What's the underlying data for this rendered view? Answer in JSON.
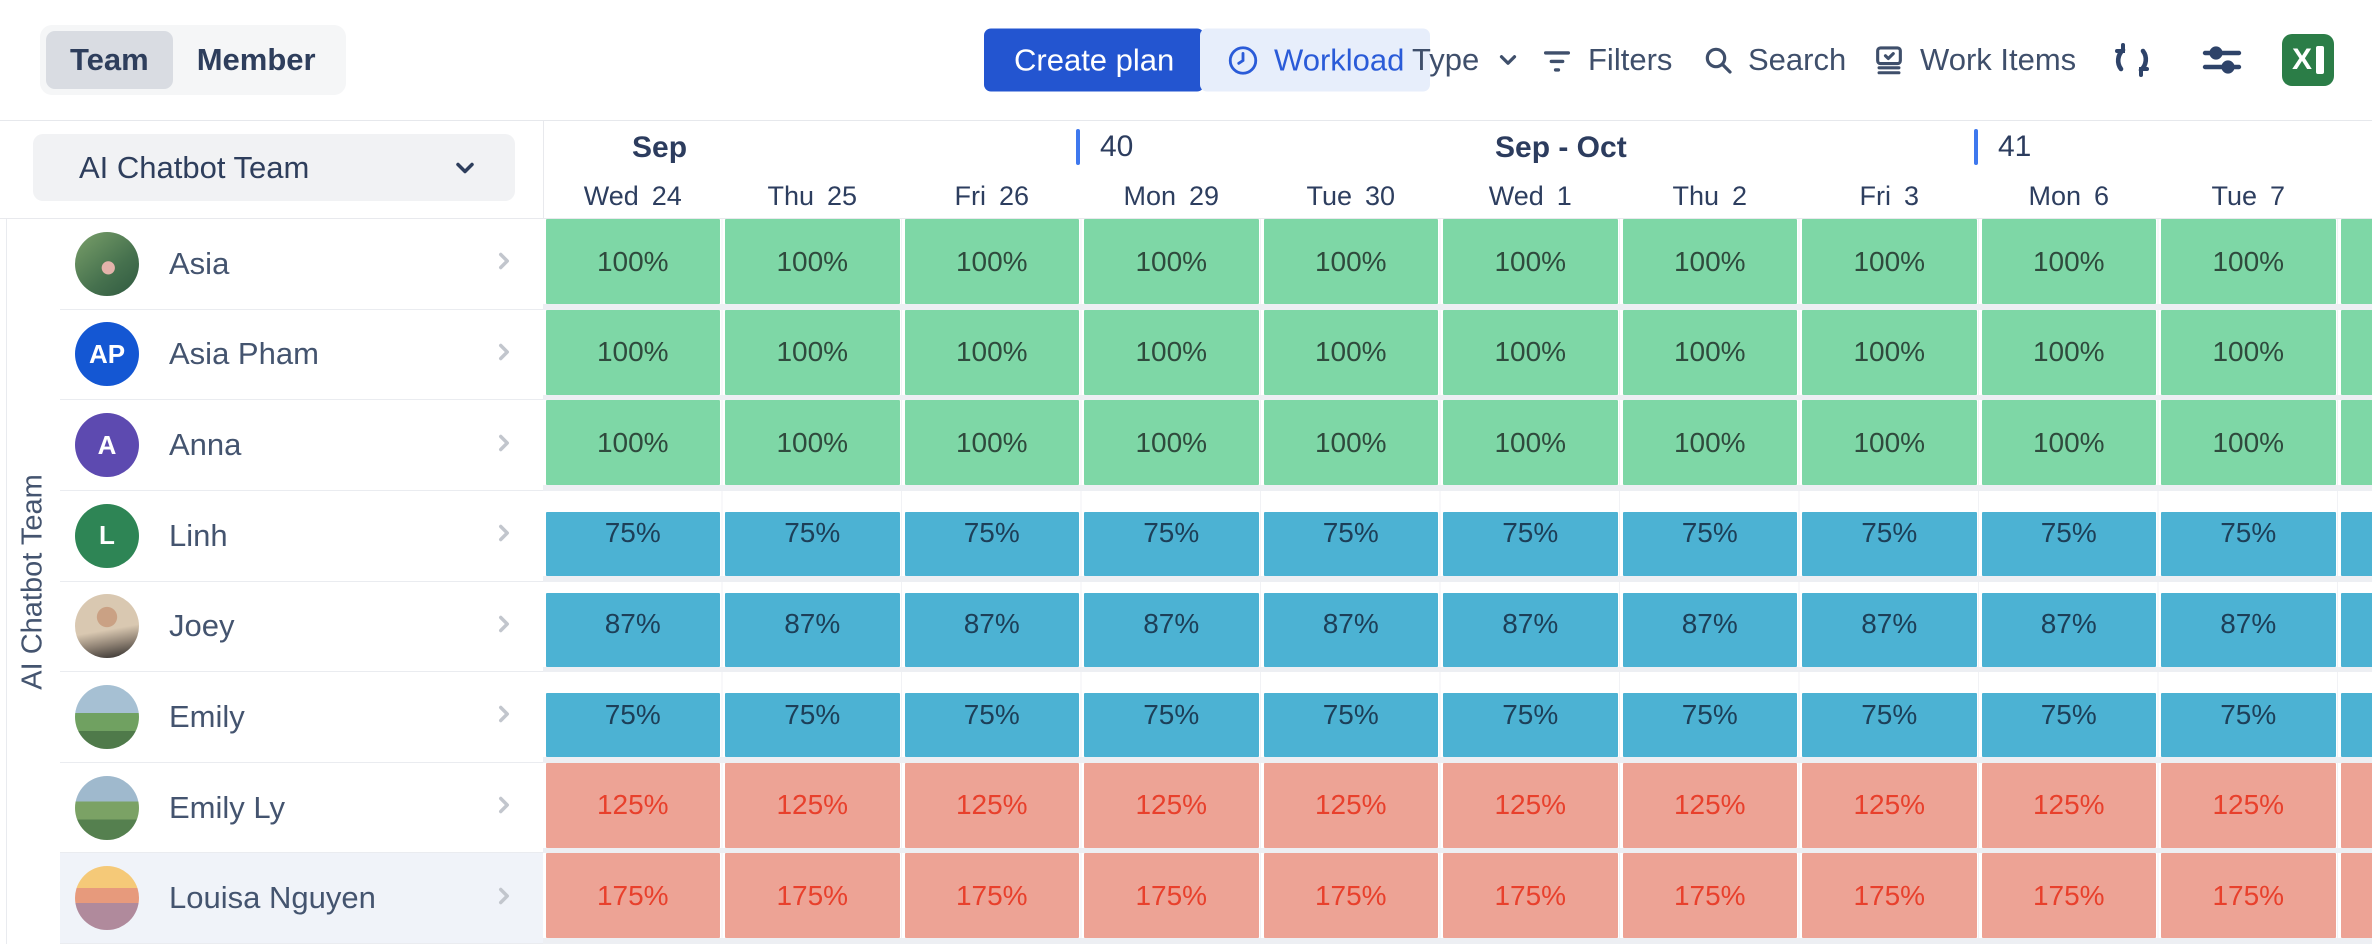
{
  "toolbar": {
    "view_toggle": {
      "options": [
        "Team",
        "Member"
      ],
      "selected": "Team"
    },
    "create_plan_label": "Create plan",
    "workload_label": "Workload",
    "type_label": "Type",
    "filters_label": "Filters",
    "search_label": "Search",
    "work_items_label": "Work Items",
    "icons": [
      "clock-icon",
      "chevron-down-icon",
      "filter-icon",
      "search-icon",
      "work-items-icon",
      "sync-icon",
      "display-settings-icon",
      "excel-export-icon"
    ],
    "primary_color": "#2355d0",
    "workload_pill_bg": "#e7eefb",
    "workload_pill_text": "#2a5bd8"
  },
  "sidebar": {
    "team_selector_value": "AI Chatbot Team",
    "group_label": "AI Chatbot Team"
  },
  "timeline": {
    "periods": [
      {
        "month_label": "Sep",
        "week_number": "40"
      },
      {
        "month_label": "Sep - Oct",
        "week_number": "41"
      }
    ],
    "days": [
      {
        "dow": "Wed",
        "num": "24"
      },
      {
        "dow": "Thu",
        "num": "25"
      },
      {
        "dow": "Fri",
        "num": "26"
      },
      {
        "dow": "Mon",
        "num": "29"
      },
      {
        "dow": "Tue",
        "num": "30"
      },
      {
        "dow": "Wed",
        "num": "1"
      },
      {
        "dow": "Thu",
        "num": "2"
      },
      {
        "dow": "Fri",
        "num": "3"
      },
      {
        "dow": "Mon",
        "num": "6"
      },
      {
        "dow": "Tue",
        "num": "7"
      }
    ],
    "week_marker_color": "#3e78ee"
  },
  "members": [
    {
      "name": "Asia",
      "avatar": {
        "type": "photo",
        "style": "park"
      },
      "status": "full",
      "values": [
        100,
        100,
        100,
        100,
        100,
        100,
        100,
        100,
        100,
        100
      ]
    },
    {
      "name": "Asia Pham",
      "avatar": {
        "type": "initials",
        "text": "AP",
        "color": "#1457d3"
      },
      "status": "full",
      "values": [
        100,
        100,
        100,
        100,
        100,
        100,
        100,
        100,
        100,
        100
      ]
    },
    {
      "name": "Anna",
      "avatar": {
        "type": "initials",
        "text": "A",
        "color": "#5d4ab0"
      },
      "status": "full",
      "values": [
        100,
        100,
        100,
        100,
        100,
        100,
        100,
        100,
        100,
        100
      ]
    },
    {
      "name": "Linh",
      "avatar": {
        "type": "initials",
        "text": "L",
        "color": "#2e8555"
      },
      "status": "under",
      "values": [
        75,
        75,
        75,
        75,
        75,
        75,
        75,
        75,
        75,
        75
      ]
    },
    {
      "name": "Joey",
      "avatar": {
        "type": "photo",
        "style": "portrait"
      },
      "status": "under",
      "values": [
        87,
        87,
        87,
        87,
        87,
        87,
        87,
        87,
        87,
        87
      ]
    },
    {
      "name": "Emily",
      "avatar": {
        "type": "photo",
        "style": "mountain"
      },
      "status": "under",
      "values": [
        75,
        75,
        75,
        75,
        75,
        75,
        75,
        75,
        75,
        75
      ]
    },
    {
      "name": "Emily Ly",
      "avatar": {
        "type": "photo",
        "style": "mountain2"
      },
      "status": "over",
      "values": [
        125,
        125,
        125,
        125,
        125,
        125,
        125,
        125,
        125,
        125
      ]
    },
    {
      "name": "Louisa Nguyen",
      "avatar": {
        "type": "photo",
        "style": "sunset"
      },
      "selected": true,
      "status": "over",
      "values": [
        175,
        175,
        175,
        175,
        175,
        175,
        175,
        175,
        175,
        175
      ]
    }
  ],
  "colors": {
    "status": {
      "full": {
        "bg": "#7ed7a6",
        "text": "#2f4a3d"
      },
      "under": {
        "bg": "#4cb2d3",
        "text": "#1d3f58"
      },
      "over": {
        "bg": "#eda395",
        "text": "#e8402c"
      }
    }
  }
}
